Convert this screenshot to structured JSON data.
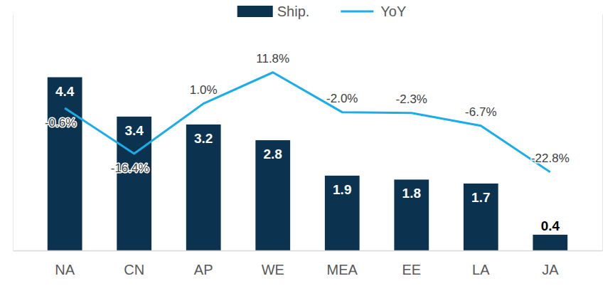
{
  "chart_data": {
    "type": "bar",
    "categories": [
      "NA",
      "CN",
      "AP",
      "WE",
      "MEA",
      "EE",
      "LA",
      "JA"
    ],
    "series": [
      {
        "name": "Ship.",
        "type": "bar",
        "color": "#0b3350",
        "values": [
          4.4,
          3.4,
          3.2,
          2.8,
          1.9,
          1.8,
          1.7,
          0.4
        ]
      },
      {
        "name": "YoY",
        "type": "line",
        "color": "#1badea",
        "axis": "y2",
        "values": [
          -0.6,
          -16.4,
          1.0,
          11.8,
          -2.0,
          -2.3,
          -6.7,
          -22.8
        ],
        "value_labels": [
          "-0.6%",
          "-16.4%",
          "1.0%",
          "11.8%",
          "-2.0%",
          "-2.3%",
          "-6.7%",
          "-22.8%"
        ]
      }
    ],
    "ylim": [
      0,
      6
    ],
    "yticks": [],
    "y2lim": [
      -50,
      32
    ],
    "y2ticks": [],
    "legend": "top",
    "tick_labels": "x",
    "grid": false,
    "data_labels": true
  }
}
